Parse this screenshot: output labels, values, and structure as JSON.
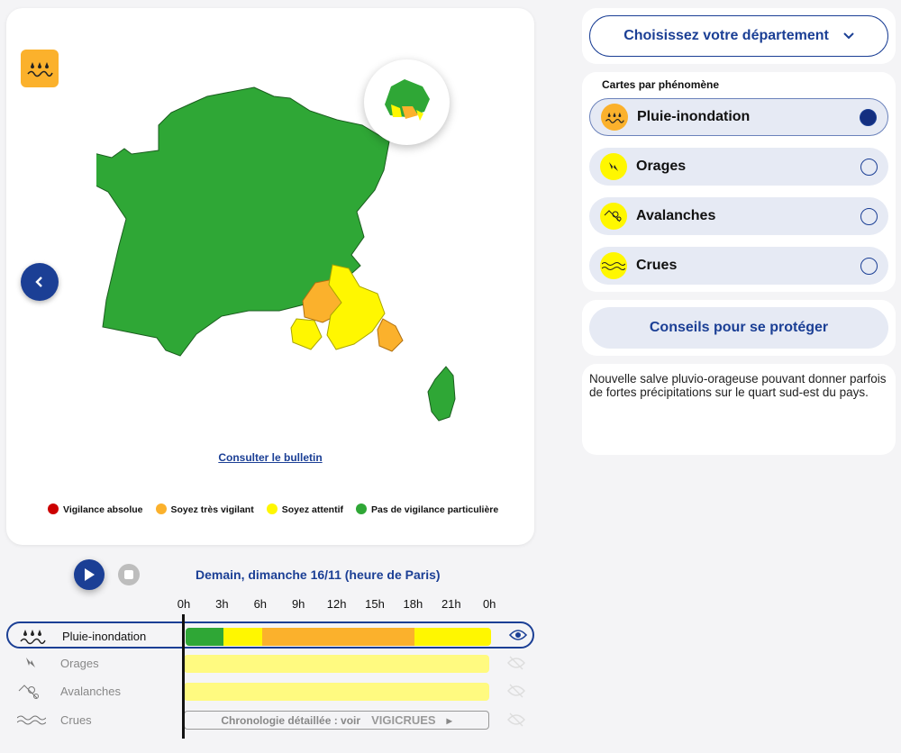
{
  "map": {
    "bulletin_link": "Consulter le bulletin",
    "colors": {
      "green": "#2fa736",
      "yellow": "#fff700",
      "orange": "#fbb12c",
      "red": "#cc0000"
    },
    "legend": [
      {
        "label": "Vigilance absolue",
        "color": "#cc0000"
      },
      {
        "label": "Soyez très vigilant",
        "color": "#fbb12c"
      },
      {
        "label": "Soyez attentif",
        "color": "#fff700"
      },
      {
        "label": "Pas de vigilance particulière",
        "color": "#2fa736"
      }
    ]
  },
  "department_select": {
    "label": "Choisissez votre département"
  },
  "phenomena": {
    "title": "Cartes par phénomène",
    "items": [
      {
        "label": "Pluie-inondation",
        "icon": "rain-flood-icon",
        "color": "#fbb12c",
        "selected": true
      },
      {
        "label": "Orages",
        "icon": "lightning-icon",
        "color": "#fff700",
        "selected": false
      },
      {
        "label": "Avalanches",
        "icon": "avalanche-icon",
        "color": "#fff700",
        "selected": false
      },
      {
        "label": "Crues",
        "icon": "waves-icon",
        "color": "#fff700",
        "selected": false
      }
    ]
  },
  "conseils_button": "Conseils pour se protéger",
  "description": "Nouvelle salve pluvio-orageuse pouvant donner parfois de fortes précipitations sur le quart sud-est du pays.",
  "timeline": {
    "day": "Demain, dimanche 16/11 (heure de Paris)",
    "hours": [
      "0h",
      "3h",
      "6h",
      "9h",
      "12h",
      "15h",
      "18h",
      "21h",
      "0h"
    ],
    "rows": [
      {
        "label": "Pluie-inondation",
        "segments": [
          {
            "from": 0,
            "to": 3,
            "color": "#2fa736"
          },
          {
            "from": 3,
            "to": 6,
            "color": "#fff700"
          },
          {
            "from": 6,
            "to": 18,
            "color": "#fbb12c"
          },
          {
            "from": 18,
            "to": 24,
            "color": "#fff700"
          }
        ],
        "visible": true
      },
      {
        "label": "Orages",
        "segments": [
          {
            "from": 0,
            "to": 24,
            "color": "#fffa80"
          }
        ],
        "visible": false
      },
      {
        "label": "Avalanches",
        "segments": [
          {
            "from": 0,
            "to": 24,
            "color": "#fffa80"
          }
        ],
        "visible": false
      },
      {
        "label": "Crues",
        "chrono_text": "Chronologie détaillée : voir",
        "chrono_brand": "VIGICRUES",
        "visible": false
      }
    ]
  }
}
